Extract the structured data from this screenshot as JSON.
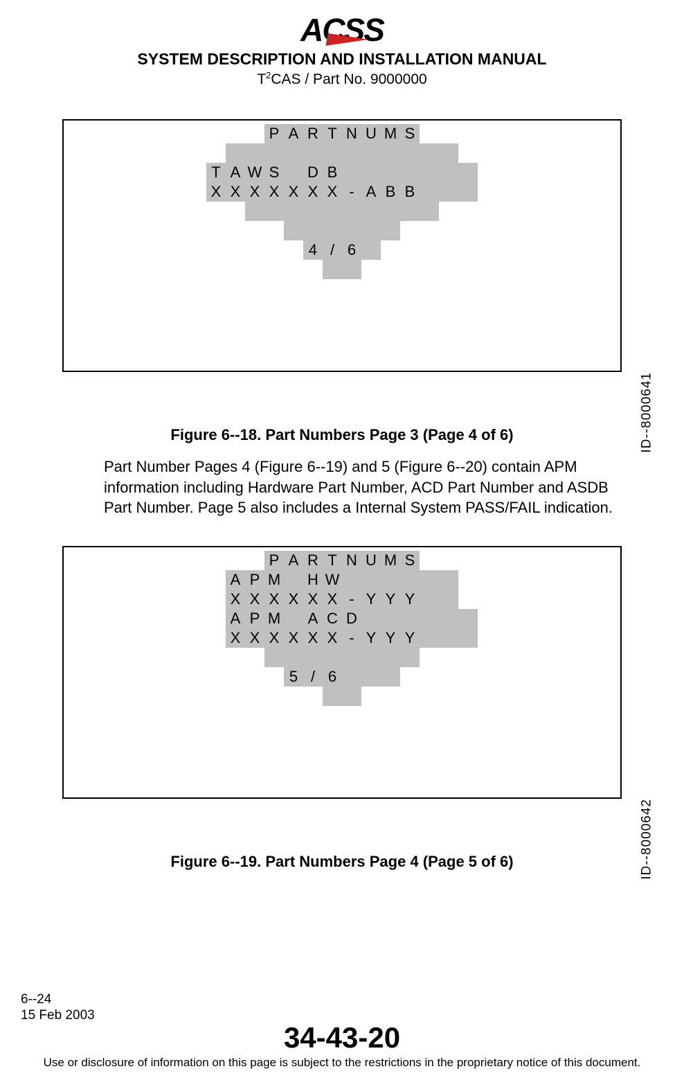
{
  "header": {
    "logo_text": "ACSS",
    "title": "SYSTEM DESCRIPTION AND INSTALLATION MANUAL",
    "subtitle_prefix": "T",
    "subtitle_sup": "2",
    "subtitle_rest": "CAS / Part No. 9000000"
  },
  "figure1": {
    "id_label": "ID--8000641",
    "caption": "Figure 6--18.  Part Numbers Page 3 (Page 4 of 6)",
    "grid": {
      "cols": 20,
      "rows": [
        {
          "offset": 6,
          "cells": [
            {
              "t": "P",
              "g": 1
            },
            {
              "t": "A",
              "g": 1
            },
            {
              "t": "R",
              "g": 1
            },
            {
              "t": "T",
              "g": 1
            },
            {
              "t": "N",
              "g": 1
            },
            {
              "t": "U",
              "g": 1
            },
            {
              "t": "M",
              "g": 1
            },
            {
              "t": "S",
              "g": 1
            }
          ]
        },
        {
          "offset": 4,
          "cells": [
            {
              "t": "",
              "g": 1
            },
            {
              "t": "",
              "g": 1
            },
            {
              "t": "",
              "g": 1
            },
            {
              "t": "",
              "g": 1
            },
            {
              "t": "",
              "g": 1
            },
            {
              "t": "",
              "g": 1
            },
            {
              "t": "",
              "g": 1
            },
            {
              "t": "",
              "g": 1
            },
            {
              "t": "",
              "g": 1
            },
            {
              "t": "",
              "g": 1
            },
            {
              "t": "",
              "g": 1
            },
            {
              "t": "",
              "g": 1
            }
          ]
        },
        {
          "offset": 3,
          "cells": [
            {
              "t": "T",
              "g": 1
            },
            {
              "t": "A",
              "g": 1
            },
            {
              "t": "W",
              "g": 1
            },
            {
              "t": "S",
              "g": 1
            },
            {
              "t": "",
              "g": 1
            },
            {
              "t": "D",
              "g": 1
            },
            {
              "t": "B",
              "g": 1
            },
            {
              "t": "",
              "g": 1
            },
            {
              "t": "",
              "g": 1
            },
            {
              "t": "",
              "g": 1
            },
            {
              "t": "",
              "g": 1
            },
            {
              "t": "",
              "g": 1
            },
            {
              "t": "",
              "g": 1
            },
            {
              "t": "",
              "g": 1
            }
          ]
        },
        {
          "offset": 3,
          "cells": [
            {
              "t": "X",
              "g": 1
            },
            {
              "t": "X",
              "g": 1
            },
            {
              "t": "X",
              "g": 1
            },
            {
              "t": "X",
              "g": 1
            },
            {
              "t": "X",
              "g": 1
            },
            {
              "t": "X",
              "g": 1
            },
            {
              "t": "X",
              "g": 1
            },
            {
              "t": "-",
              "g": 1
            },
            {
              "t": "A",
              "g": 1
            },
            {
              "t": "B",
              "g": 1
            },
            {
              "t": "B",
              "g": 1
            },
            {
              "t": "",
              "g": 1
            },
            {
              "t": "",
              "g": 1
            },
            {
              "t": "",
              "g": 1
            }
          ]
        },
        {
          "offset": 5,
          "cells": [
            {
              "t": "",
              "g": 1
            },
            {
              "t": "",
              "g": 1
            },
            {
              "t": "",
              "g": 1
            },
            {
              "t": "",
              "g": 1
            },
            {
              "t": "",
              "g": 1
            },
            {
              "t": "",
              "g": 1
            },
            {
              "t": "",
              "g": 1
            },
            {
              "t": "",
              "g": 1
            },
            {
              "t": "",
              "g": 1
            },
            {
              "t": "",
              "g": 1
            }
          ]
        },
        {
          "offset": 7,
          "cells": [
            {
              "t": "",
              "g": 1
            },
            {
              "t": "",
              "g": 1
            },
            {
              "t": "",
              "g": 1
            },
            {
              "t": "",
              "g": 1
            },
            {
              "t": "",
              "g": 1
            },
            {
              "t": "",
              "g": 1
            }
          ]
        },
        {
          "offset": 8,
          "cells": [
            {
              "t": "4",
              "g": 1
            },
            {
              "t": "/",
              "g": 1
            },
            {
              "t": "6",
              "g": 1
            },
            {
              "t": "",
              "g": 1
            }
          ]
        },
        {
          "offset": 9,
          "cells": [
            {
              "t": "",
              "g": 1
            },
            {
              "t": "",
              "g": 1
            }
          ]
        }
      ]
    }
  },
  "paragraph": "Part Number Pages 4 (Figure 6--19) and 5 (Figure 6--20) contain APM information including Hardware Part Number, ACD Part Number and ASDB Part Number.  Page 5 also includes a Internal System PASS/FAIL indication.",
  "figure2": {
    "id_label": "ID--8000642",
    "caption": "Figure 6--19.  Part Numbers Page 4  (Page 5 of 6)",
    "grid": {
      "cols": 20,
      "rows": [
        {
          "offset": 6,
          "cells": [
            {
              "t": "P",
              "g": 1
            },
            {
              "t": "A",
              "g": 1
            },
            {
              "t": "R",
              "g": 1
            },
            {
              "t": "T",
              "g": 1
            },
            {
              "t": "N",
              "g": 1
            },
            {
              "t": "U",
              "g": 1
            },
            {
              "t": "M",
              "g": 1
            },
            {
              "t": "S",
              "g": 1
            }
          ]
        },
        {
          "offset": 4,
          "cells": [
            {
              "t": "A",
              "g": 1
            },
            {
              "t": "P",
              "g": 1
            },
            {
              "t": "M",
              "g": 1
            },
            {
              "t": "",
              "g": 1
            },
            {
              "t": "H",
              "g": 1
            },
            {
              "t": "W",
              "g": 1
            },
            {
              "t": "",
              "g": 1
            },
            {
              "t": "",
              "g": 1
            },
            {
              "t": "",
              "g": 1
            },
            {
              "t": "",
              "g": 1
            },
            {
              "t": "",
              "g": 1
            },
            {
              "t": "",
              "g": 1
            }
          ]
        },
        {
          "offset": 4,
          "cells": [
            {
              "t": "X",
              "g": 1
            },
            {
              "t": "X",
              "g": 1
            },
            {
              "t": "X",
              "g": 1
            },
            {
              "t": "X",
              "g": 1
            },
            {
              "t": "X",
              "g": 1
            },
            {
              "t": "X",
              "g": 1
            },
            {
              "t": "-",
              "g": 1
            },
            {
              "t": "Y",
              "g": 1
            },
            {
              "t": "Y",
              "g": 1
            },
            {
              "t": "Y",
              "g": 1
            },
            {
              "t": "",
              "g": 1
            },
            {
              "t": "",
              "g": 1
            }
          ]
        },
        {
          "offset": 4,
          "cells": [
            {
              "t": "A",
              "g": 1
            },
            {
              "t": "P",
              "g": 1
            },
            {
              "t": "M",
              "g": 1
            },
            {
              "t": "",
              "g": 1
            },
            {
              "t": "A",
              "g": 1
            },
            {
              "t": "C",
              "g": 1
            },
            {
              "t": "D",
              "g": 1
            },
            {
              "t": "",
              "g": 1
            },
            {
              "t": "",
              "g": 1
            },
            {
              "t": "",
              "g": 1
            },
            {
              "t": "",
              "g": 1
            },
            {
              "t": "",
              "g": 1
            },
            {
              "t": "",
              "g": 1
            }
          ]
        },
        {
          "offset": 4,
          "cells": [
            {
              "t": "X",
              "g": 1
            },
            {
              "t": "X",
              "g": 1
            },
            {
              "t": "X",
              "g": 1
            },
            {
              "t": "X",
              "g": 1
            },
            {
              "t": "X",
              "g": 1
            },
            {
              "t": "X",
              "g": 1
            },
            {
              "t": "-",
              "g": 1
            },
            {
              "t": "Y",
              "g": 1
            },
            {
              "t": "Y",
              "g": 1
            },
            {
              "t": "Y",
              "g": 1
            },
            {
              "t": "",
              "g": 1
            },
            {
              "t": "",
              "g": 1
            },
            {
              "t": "",
              "g": 1
            }
          ]
        },
        {
          "offset": 6,
          "cells": [
            {
              "t": "",
              "g": 1
            },
            {
              "t": "",
              "g": 1
            },
            {
              "t": "",
              "g": 1
            },
            {
              "t": "",
              "g": 1
            },
            {
              "t": "",
              "g": 1
            },
            {
              "t": "",
              "g": 1
            },
            {
              "t": "",
              "g": 1
            },
            {
              "t": "",
              "g": 1
            }
          ]
        },
        {
          "offset": 7,
          "cells": [
            {
              "t": "5",
              "g": 1
            },
            {
              "t": "/",
              "g": 1
            },
            {
              "t": "6",
              "g": 1
            },
            {
              "t": "",
              "g": 1
            },
            {
              "t": "",
              "g": 1
            },
            {
              "t": "",
              "g": 1
            }
          ]
        },
        {
          "offset": 9,
          "cells": [
            {
              "t": "",
              "g": 1
            },
            {
              "t": "",
              "g": 1
            }
          ]
        }
      ]
    }
  },
  "footer": {
    "page_num": "6--24",
    "date": "15 Feb 2003",
    "code": "34-43-20",
    "disclaimer": "Use or disclosure of information on this page is subject to the restrictions in the proprietary notice of this document."
  },
  "colors": {
    "grey": "#c0c0c0",
    "red": "#cc2222",
    "black": "#000000",
    "white": "#ffffff"
  }
}
